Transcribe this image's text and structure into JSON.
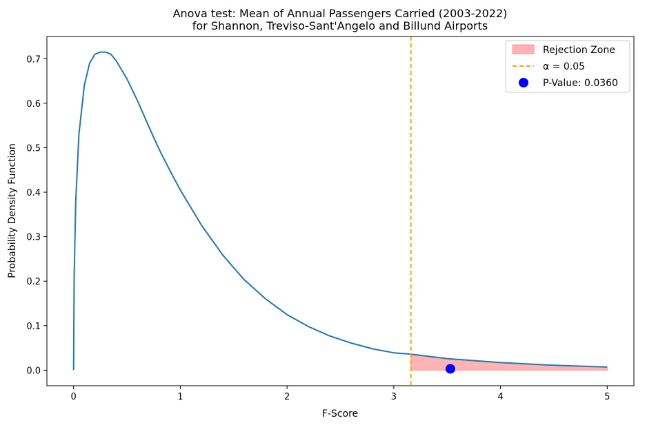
{
  "chart_data": {
    "type": "line",
    "title_line1": "Anova test: Mean of Annual Passengers Carried (2003-2022)",
    "title_line2": "for Shannon, Treviso-Sant'Angelo and Billund Airports",
    "xlabel": "F-Score",
    "ylabel": "Probability Density Function",
    "xlim": [
      -0.25,
      5.25
    ],
    "ylim": [
      -0.035,
      0.75
    ],
    "x_ticks": [
      0,
      1,
      2,
      3,
      4,
      5
    ],
    "x_tick_labels": [
      "0",
      "1",
      "2",
      "3",
      "4",
      "5"
    ],
    "y_ticks": [
      0.0,
      0.1,
      0.2,
      0.3,
      0.4,
      0.5,
      0.6,
      0.7
    ],
    "y_tick_labels": [
      "0.0",
      "0.1",
      "0.2",
      "0.3",
      "0.4",
      "0.5",
      "0.6",
      "0.7"
    ],
    "grid": false,
    "legend_position": "top-right",
    "series": [
      {
        "name": "",
        "kind": "line",
        "color": "#1f77b4",
        "x": [
          0,
          0.005,
          0.02,
          0.05,
          0.1,
          0.15,
          0.2,
          0.25,
          0.3,
          0.35,
          0.4,
          0.5,
          0.6,
          0.7,
          0.8,
          0.9,
          1.0,
          1.2,
          1.4,
          1.6,
          1.8,
          2.0,
          2.2,
          2.4,
          2.6,
          2.8,
          3.0,
          3.16,
          3.5,
          4.0,
          4.5,
          5.0
        ],
        "y": [
          0,
          0.21,
          0.38,
          0.53,
          0.64,
          0.69,
          0.71,
          0.715,
          0.715,
          0.71,
          0.695,
          0.655,
          0.605,
          0.55,
          0.497,
          0.45,
          0.405,
          0.325,
          0.258,
          0.203,
          0.16,
          0.125,
          0.098,
          0.077,
          0.061,
          0.048,
          0.039,
          0.036,
          0.026,
          0.017,
          0.011,
          0.007
        ]
      }
    ],
    "alpha_line": {
      "x": 3.16,
      "color": "#ffa500",
      "label": "α = 0.05"
    },
    "rejection_zone": {
      "x_start": 3.16,
      "x_end": 5.0,
      "color": "#ff9999",
      "label": "Rejection Zone"
    },
    "p_value_point": {
      "x": 3.53,
      "y": 0.003,
      "color": "#0000ff",
      "label": "P-Value: 0.0360"
    }
  }
}
